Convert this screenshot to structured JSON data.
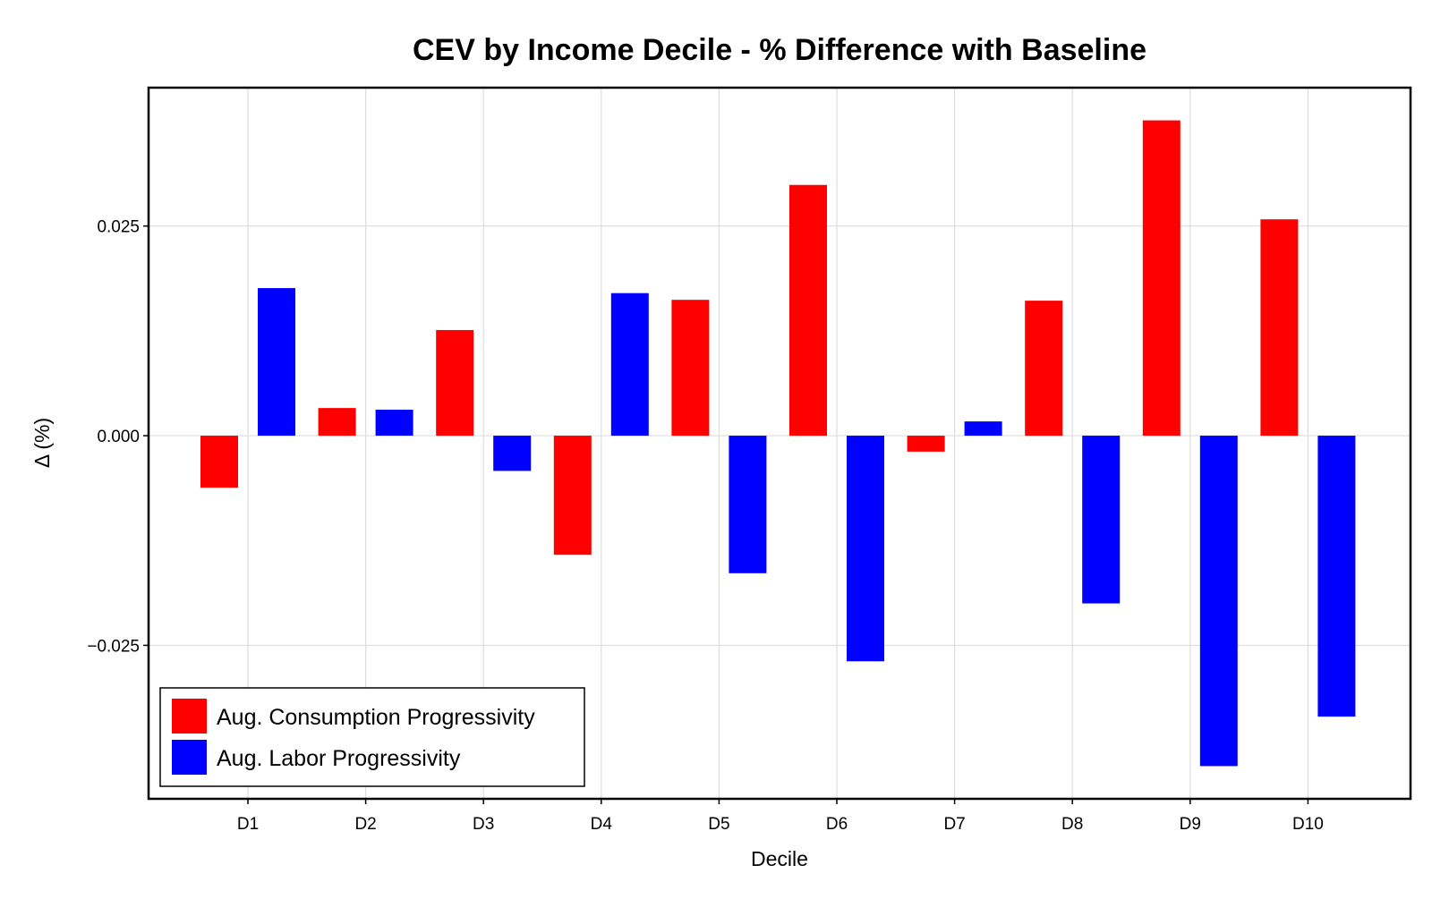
{
  "chart_data": {
    "type": "bar",
    "title": "CEV by Income Decile - % Difference with Baseline",
    "xlabel": "Decile",
    "ylabel": "Δ (%)",
    "categories": [
      "D1",
      "D2",
      "D3",
      "D4",
      "D5",
      "D6",
      "D7",
      "D8",
      "D9",
      "D10"
    ],
    "series": [
      {
        "name": "Aug. Consumption Progressivity",
        "color": "#ff0000",
        "values": [
          -0.0062,
          0.0033,
          0.0126,
          -0.0142,
          0.0162,
          0.0299,
          -0.0019,
          0.0161,
          0.0376,
          0.0258
        ]
      },
      {
        "name": "Aug. Labor Progressivity",
        "color": "#0000ff",
        "values": [
          0.0176,
          0.0031,
          -0.0042,
          0.017,
          -0.0164,
          -0.0269,
          0.0017,
          -0.02,
          -0.0394,
          -0.0335
        ]
      }
    ],
    "ylim": [
      -0.0433,
      0.0415
    ],
    "yticks": [
      -0.025,
      0.0,
      0.025
    ],
    "ytick_labels": [
      "−0.025",
      "0.000",
      "0.025"
    ],
    "grid": true,
    "legend_position": "bottom-left"
  }
}
